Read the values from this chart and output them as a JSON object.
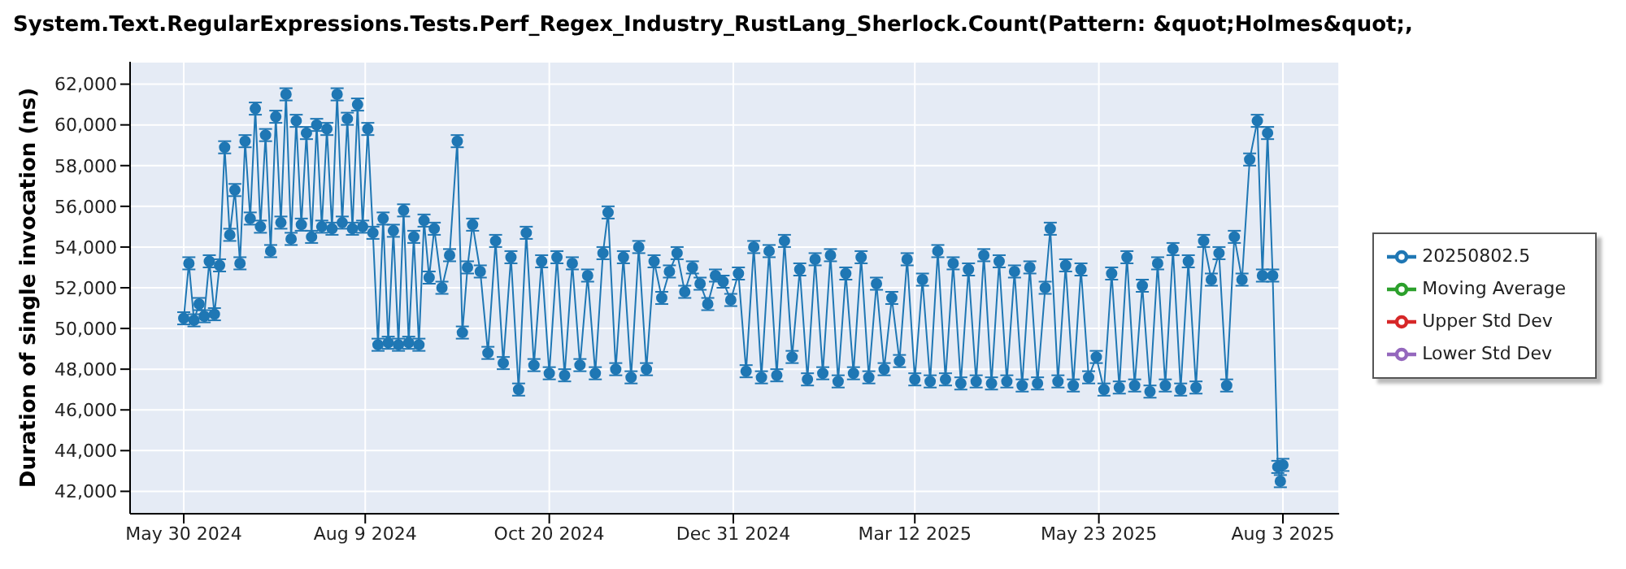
{
  "chart_data": {
    "type": "line",
    "title": "System.Text.RegularExpressions.Tests.Perf_Regex_Industry_RustLang_Sherlock.Count(Pattern: &quot;Holmes&quot;,",
    "ylabel": "Duration of single invocation (ns)",
    "x": [
      "2024-05-30",
      "2024-06-01",
      "2024-06-03",
      "2024-06-05",
      "2024-06-07",
      "2024-06-09",
      "2024-06-11",
      "2024-06-13",
      "2024-06-15",
      "2024-06-17",
      "2024-06-19",
      "2024-06-21",
      "2024-06-23",
      "2024-06-25",
      "2024-06-27",
      "2024-06-29",
      "2024-07-01",
      "2024-07-03",
      "2024-07-05",
      "2024-07-07",
      "2024-07-09",
      "2024-07-11",
      "2024-07-13",
      "2024-07-15",
      "2024-07-17",
      "2024-07-19",
      "2024-07-21",
      "2024-07-23",
      "2024-07-25",
      "2024-07-27",
      "2024-07-29",
      "2024-07-31",
      "2024-08-02",
      "2024-08-04",
      "2024-08-06",
      "2024-08-08",
      "2024-08-10",
      "2024-08-12",
      "2024-08-14",
      "2024-08-16",
      "2024-08-18",
      "2024-08-20",
      "2024-08-22",
      "2024-08-24",
      "2024-08-26",
      "2024-08-28",
      "2024-08-30",
      "2024-09-01",
      "2024-09-03",
      "2024-09-05",
      "2024-09-08",
      "2024-09-11",
      "2024-09-14",
      "2024-09-16",
      "2024-09-18",
      "2024-09-20",
      "2024-09-23",
      "2024-09-26",
      "2024-09-29",
      "2024-10-02",
      "2024-10-05",
      "2024-10-08",
      "2024-10-11",
      "2024-10-14",
      "2024-10-17",
      "2024-10-20",
      "2024-10-23",
      "2024-10-26",
      "2024-10-29",
      "2024-11-01",
      "2024-11-04",
      "2024-11-07",
      "2024-11-10",
      "2024-11-12",
      "2024-11-15",
      "2024-11-18",
      "2024-11-21",
      "2024-11-24",
      "2024-11-27",
      "2024-11-30",
      "2024-12-03",
      "2024-12-06",
      "2024-12-09",
      "2024-12-12",
      "2024-12-15",
      "2024-12-18",
      "2024-12-21",
      "2024-12-24",
      "2024-12-27",
      "2024-12-30",
      "2025-01-02",
      "2025-01-05",
      "2025-01-08",
      "2025-01-11",
      "2025-01-14",
      "2025-01-17",
      "2025-01-20",
      "2025-01-23",
      "2025-01-26",
      "2025-01-29",
      "2025-02-01",
      "2025-02-04",
      "2025-02-07",
      "2025-02-10",
      "2025-02-13",
      "2025-02-16",
      "2025-02-19",
      "2025-02-22",
      "2025-02-25",
      "2025-02-28",
      "2025-03-03",
      "2025-03-06",
      "2025-03-09",
      "2025-03-12",
      "2025-03-15",
      "2025-03-18",
      "2025-03-21",
      "2025-03-24",
      "2025-03-27",
      "2025-03-30",
      "2025-04-02",
      "2025-04-05",
      "2025-04-08",
      "2025-04-11",
      "2025-04-14",
      "2025-04-17",
      "2025-04-20",
      "2025-04-23",
      "2025-04-26",
      "2025-04-29",
      "2025-05-02",
      "2025-05-04",
      "2025-05-07",
      "2025-05-10",
      "2025-05-13",
      "2025-05-16",
      "2025-05-19",
      "2025-05-22",
      "2025-05-25",
      "2025-05-28",
      "2025-05-31",
      "2025-06-03",
      "2025-06-06",
      "2025-06-09",
      "2025-06-12",
      "2025-06-15",
      "2025-06-18",
      "2025-06-21",
      "2025-06-24",
      "2025-06-27",
      "2025-06-30",
      "2025-07-03",
      "2025-07-06",
      "2025-07-09",
      "2025-07-12",
      "2025-07-15",
      "2025-07-18",
      "2025-07-21",
      "2025-07-24",
      "2025-07-26",
      "2025-07-28",
      "2025-07-30",
      "2025-08-01",
      "2025-08-02",
      "2025-08-03"
    ],
    "series": [
      {
        "name": "20250802.5",
        "color": "#1f77b4",
        "values": [
          50500,
          53200,
          50400,
          51200,
          50600,
          53300,
          50700,
          53100,
          58900,
          54600,
          56800,
          53200,
          59200,
          55400,
          60800,
          55000,
          59500,
          53800,
          60400,
          55200,
          61500,
          54400,
          60200,
          55100,
          59600,
          54500,
          60000,
          55000,
          59800,
          54900,
          61500,
          55200,
          60300,
          54900,
          61000,
          55000,
          59800,
          54700,
          49200,
          55400,
          49300,
          54800,
          49200,
          55800,
          49300,
          54500,
          49200,
          55300,
          52500,
          54900,
          52000,
          53600,
          59200,
          49800,
          53000,
          55100,
          52800,
          48800,
          54300,
          48300,
          53500,
          47000,
          54700,
          48200,
          53300,
          47800,
          53500,
          47700,
          53200,
          48200,
          52600,
          47800,
          53700,
          55700,
          48000,
          53500,
          47600,
          54000,
          48000,
          53300,
          51500,
          52800,
          53700,
          51800,
          53000,
          52200,
          51200,
          52600,
          52300,
          51400,
          52700,
          47900,
          54000,
          47600,
          53800,
          47700,
          54300,
          48600,
          52900,
          47500,
          53400,
          47800,
          53600,
          47400,
          52700,
          47800,
          53500,
          47600,
          52200,
          48000,
          51500,
          48400,
          53400,
          47500,
          52400,
          47400,
          53800,
          47500,
          53200,
          47300,
          52900,
          47400,
          53600,
          47300,
          53300,
          47400,
          52800,
          47200,
          53000,
          47300,
          52000,
          54900,
          47400,
          53100,
          47200,
          52900,
          47600,
          48600,
          47000,
          52700,
          47100,
          53500,
          47200,
          52100,
          46900,
          53200,
          47200,
          53900,
          47000,
          53300,
          47100,
          54300,
          52400,
          53700,
          47200,
          54500,
          52400,
          58300,
          60200,
          52600,
          59600,
          52600,
          43200,
          42500,
          43300
        ],
        "errors": [
          300,
          300,
          300,
          300,
          300,
          300,
          300,
          300,
          300,
          300,
          300,
          300,
          300,
          300,
          300,
          300,
          300,
          300,
          300,
          300,
          300,
          300,
          300,
          300,
          300,
          300,
          300,
          300,
          300,
          300,
          300,
          300,
          300,
          300,
          300,
          300,
          300,
          300,
          300,
          300,
          300,
          300,
          300,
          300,
          300,
          300,
          300,
          300,
          300,
          300,
          300,
          300,
          300,
          300,
          300,
          300,
          300,
          300,
          300,
          300,
          300,
          300,
          300,
          300,
          300,
          300,
          300,
          300,
          300,
          300,
          300,
          300,
          300,
          300,
          300,
          300,
          300,
          300,
          300,
          300,
          300,
          300,
          300,
          300,
          300,
          300,
          300,
          300,
          300,
          300,
          300,
          300,
          300,
          300,
          300,
          300,
          300,
          300,
          300,
          300,
          300,
          300,
          300,
          300,
          300,
          300,
          300,
          300,
          300,
          300,
          300,
          300,
          300,
          300,
          300,
          300,
          300,
          300,
          300,
          300,
          300,
          300,
          300,
          300,
          300,
          300,
          300,
          300,
          300,
          300,
          300,
          300,
          300,
          300,
          300,
          300,
          300,
          300,
          300,
          300,
          300,
          300,
          300,
          300,
          300,
          300,
          300,
          300,
          300,
          300,
          300,
          300,
          300,
          300,
          300,
          300,
          300,
          300,
          300,
          300,
          300,
          300,
          300,
          300,
          300
        ]
      },
      {
        "name": "Moving Average",
        "color": "#2ca02c",
        "values": [
          null,
          null,
          null,
          null,
          null,
          null,
          null,
          null,
          null,
          null,
          null,
          null,
          null,
          null,
          null,
          null,
          null,
          null,
          null,
          null,
          null,
          null,
          null,
          null,
          null,
          null,
          null,
          null,
          null,
          null,
          null,
          null,
          null,
          null,
          null,
          null,
          null,
          null,
          null,
          null,
          null,
          null,
          null,
          null,
          null,
          null,
          null,
          null,
          null,
          null,
          null,
          null,
          null,
          null,
          null,
          null,
          null,
          null,
          null,
          null,
          null,
          null,
          null,
          null,
          null,
          null,
          null,
          null,
          null,
          null,
          null,
          null,
          null,
          null,
          null,
          null,
          null,
          null,
          null,
          null,
          null,
          null,
          null,
          null,
          null,
          null,
          null,
          null,
          null,
          null,
          null,
          null,
          null,
          null,
          null,
          null,
          null,
          null,
          null,
          null,
          null,
          null,
          null,
          null,
          null,
          null,
          null,
          null,
          null,
          null,
          null,
          null,
          null,
          null,
          null,
          null,
          null,
          null,
          null,
          null,
          null,
          null,
          null,
          null,
          null,
          null,
          null,
          null,
          null,
          null,
          null,
          null,
          null,
          null,
          null,
          null,
          null,
          null,
          null,
          null,
          null,
          null,
          null,
          null,
          null,
          null,
          null,
          null,
          null,
          null,
          null,
          null,
          null,
          null,
          null,
          null,
          null,
          null,
          null,
          null,
          null,
          null,
          null,
          null,
          null
        ]
      },
      {
        "name": "Upper Std Dev",
        "color": "#d62728",
        "values": [
          null,
          null,
          null,
          null,
          null,
          null,
          null,
          null,
          null,
          null,
          null,
          null,
          null,
          null,
          null,
          null,
          null,
          null,
          null,
          null,
          null,
          null,
          null,
          null,
          null,
          null,
          null,
          null,
          null,
          null,
          null,
          null,
          null,
          null,
          null,
          null,
          null,
          null,
          null,
          null,
          null,
          null,
          null,
          null,
          null,
          null,
          null,
          null,
          null,
          null,
          null,
          null,
          null,
          null,
          null,
          null,
          null,
          null,
          null,
          null,
          null,
          null,
          null,
          null,
          null,
          null,
          null,
          null,
          null,
          null,
          null,
          null,
          null,
          null,
          null,
          null,
          null,
          null,
          null,
          null,
          null,
          null,
          null,
          null,
          null,
          null,
          null,
          null,
          null,
          null,
          null,
          null,
          null,
          null,
          null,
          null,
          null,
          null,
          null,
          null,
          null,
          null,
          null,
          null,
          null,
          null,
          null,
          null,
          null,
          null,
          null,
          null,
          null,
          null,
          null,
          null,
          null,
          null,
          null,
          null,
          null,
          null,
          null,
          null,
          null,
          null,
          null,
          null,
          null,
          null,
          null,
          null,
          null,
          null,
          null,
          null,
          null,
          null,
          null,
          null,
          null,
          null,
          null,
          null,
          null,
          null,
          null,
          null,
          null,
          null,
          null,
          null,
          null,
          null,
          null,
          null,
          null,
          null,
          null,
          null,
          null,
          null,
          null,
          null,
          null
        ]
      },
      {
        "name": "Lower Std Dev",
        "color": "#9467bd",
        "values": [
          null,
          null,
          null,
          null,
          null,
          null,
          null,
          null,
          null,
          null,
          null,
          null,
          null,
          null,
          null,
          null,
          null,
          null,
          null,
          null,
          null,
          null,
          null,
          null,
          null,
          null,
          null,
          null,
          null,
          null,
          null,
          null,
          null,
          null,
          null,
          null,
          null,
          null,
          null,
          null,
          null,
          null,
          null,
          null,
          null,
          null,
          null,
          null,
          null,
          null,
          null,
          null,
          null,
          null,
          null,
          null,
          null,
          null,
          null,
          null,
          null,
          null,
          null,
          null,
          null,
          null,
          null,
          null,
          null,
          null,
          null,
          null,
          null,
          null,
          null,
          null,
          null,
          null,
          null,
          null,
          null,
          null,
          null,
          null,
          null,
          null,
          null,
          null,
          null,
          null,
          null,
          null,
          null,
          null,
          null,
          null,
          null,
          null,
          null,
          null,
          null,
          null,
          null,
          null,
          null,
          null,
          null,
          null,
          null,
          null,
          null,
          null,
          null,
          null,
          null,
          null,
          null,
          null,
          null,
          null,
          null,
          null,
          null,
          null,
          null,
          null,
          null,
          null,
          null,
          null,
          null,
          null,
          null,
          null,
          null,
          null,
          null,
          null,
          null,
          null,
          null,
          null,
          null,
          null,
          null,
          null,
          null,
          null,
          null,
          null,
          null,
          null,
          null,
          null,
          null,
          null,
          null,
          null,
          null,
          null,
          null,
          null,
          null,
          null,
          null
        ]
      }
    ],
    "xlim": [
      "2024-05-09",
      "2025-08-25"
    ],
    "xticks": [
      {
        "value": "2024-05-30",
        "label": "May 30 2024"
      },
      {
        "value": "2024-08-09",
        "label": "Aug 9 2024"
      },
      {
        "value": "2024-10-20",
        "label": "Oct 20 2024"
      },
      {
        "value": "2024-12-31",
        "label": "Dec 31 2024"
      },
      {
        "value": "2025-03-12",
        "label": "Mar 12 2025"
      },
      {
        "value": "2025-05-23",
        "label": "May 23 2025"
      },
      {
        "value": "2025-08-03",
        "label": "Aug 3 2025"
      }
    ],
    "ylim": [
      40900,
      63100
    ],
    "yticks": [
      {
        "value": 42000,
        "label": "42,000"
      },
      {
        "value": 44000,
        "label": "44,000"
      },
      {
        "value": 46000,
        "label": "46,000"
      },
      {
        "value": 48000,
        "label": "48,000"
      },
      {
        "value": 50000,
        "label": "50,000"
      },
      {
        "value": 52000,
        "label": "52,000"
      },
      {
        "value": 54000,
        "label": "54,000"
      },
      {
        "value": 56000,
        "label": "56,000"
      },
      {
        "value": 58000,
        "label": "58,000"
      },
      {
        "value": 60000,
        "label": "60,000"
      },
      {
        "value": 62000,
        "label": "62,000"
      }
    ],
    "grid": true,
    "legend": "right",
    "marker": "circle",
    "line_style": "solid"
  }
}
